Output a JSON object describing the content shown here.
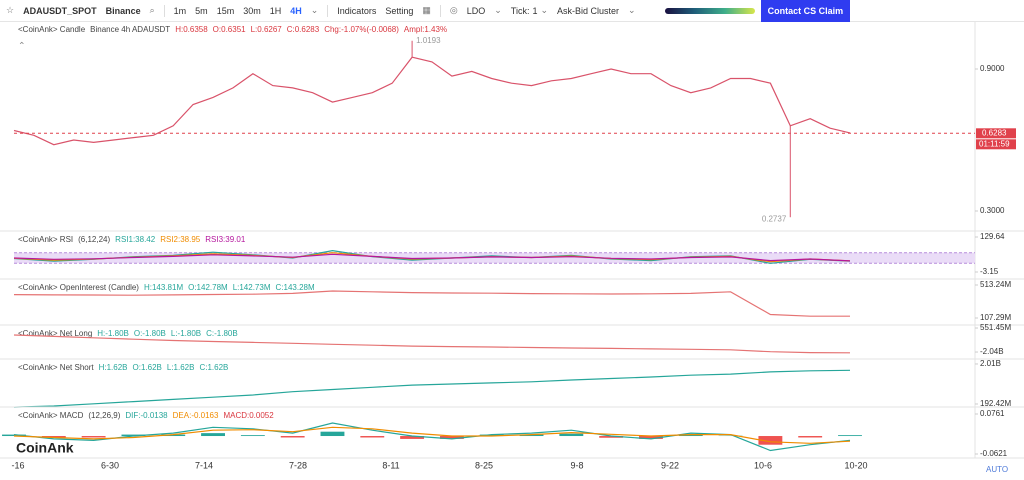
{
  "toolbar": {
    "symbol": "ADAUSDT_SPOT",
    "exchange": "Binance",
    "intervals": [
      "1m",
      "5m",
      "15m",
      "30m",
      "1H",
      "4H"
    ],
    "active_interval": 5,
    "indicators": "Indicators",
    "setting": "Setting",
    "coin": "LDO",
    "tick_label": "Tick:",
    "tick_value": "1",
    "cluster": "Ask-Bid Cluster",
    "contact": "Contact CS Claim"
  },
  "chart_data": [
    {
      "type": "line",
      "header": [
        {
          "text": "<CoinAnk> Candle",
          "color": "#444"
        },
        {
          "text": "Binance 4h ADAUSDT",
          "color": "#444"
        },
        {
          "text": "H:0.6358",
          "color": "#d9363e"
        },
        {
          "text": "O:0.6351",
          "color": "#d9363e"
        },
        {
          "text": "L:0.6267",
          "color": "#d9363e"
        },
        {
          "text": "C:0.6283",
          "color": "#d9363e"
        },
        {
          "text": "Chg:-1.07%(-0.0068)",
          "color": "#d9363e"
        },
        {
          "text": "Ampl:1.43%",
          "color": "#d9363e"
        }
      ],
      "series": [
        {
          "color": "#d9536a",
          "values": [
            0.64,
            0.62,
            0.58,
            0.6,
            0.59,
            0.6,
            0.61,
            0.62,
            0.66,
            0.75,
            0.78,
            0.82,
            0.88,
            0.83,
            0.82,
            0.8,
            0.76,
            0.78,
            0.8,
            0.84,
            0.95,
            0.93,
            0.87,
            0.89,
            0.86,
            0.84,
            0.83,
            0.85,
            0.86,
            0.88,
            0.9,
            0.88,
            0.88,
            0.83,
            0.8,
            0.82,
            0.86,
            0.86,
            0.84,
            0.66,
            0.69,
            0.65,
            0.63
          ]
        }
      ],
      "high": 1.0193,
      "low": 0.2737,
      "current_price": 0.6283,
      "countdown": "01:11:59",
      "ylim": [
        0.2197,
        1.0986
      ],
      "yticks": [
        {
          "value": 0.9,
          "label": "0.9000"
        },
        {
          "value": 0.3,
          "label": "0.3000"
        }
      ]
    },
    {
      "type": "line",
      "header": [
        {
          "text": "<CoinAnk> RSI",
          "color": "#444"
        },
        {
          "text": "(6,12,24)",
          "color": "#444"
        },
        {
          "text": "RSI1:38.42",
          "color": "#26a69a"
        },
        {
          "text": "RSI2:38.95",
          "color": "#f08c00"
        },
        {
          "text": "RSI3:39.01",
          "color": "#b5179e"
        }
      ],
      "band": [
        30,
        70
      ],
      "series": [
        {
          "color": "#26a69a",
          "values": [
            48,
            38,
            45,
            55,
            60,
            72,
            62,
            50,
            78,
            55,
            42,
            50,
            58,
            52,
            60,
            46,
            40,
            55,
            58,
            30,
            45,
            38
          ]
        },
        {
          "color": "#f08c00",
          "values": [
            49,
            42,
            46,
            53,
            58,
            66,
            60,
            52,
            70,
            56,
            46,
            50,
            55,
            52,
            57,
            48,
            44,
            53,
            56,
            36,
            46,
            39
          ]
        },
        {
          "color": "#b5179e",
          "values": [
            50,
            45,
            47,
            52,
            56,
            62,
            58,
            53,
            64,
            56,
            48,
            50,
            54,
            52,
            55,
            49,
            46,
            52,
            54,
            40,
            46,
            39
          ]
        }
      ],
      "ylim": [
        -25.9,
        148.6
      ],
      "yticks": [
        129.64,
        -3.15
      ]
    },
    {
      "type": "line",
      "header": [
        {
          "text": "<CoinAnk> OpenInterest (Candle)",
          "color": "#444"
        },
        {
          "text": "H:143.81M",
          "color": "#26a69a"
        },
        {
          "text": "O:142.78M",
          "color": "#26a69a"
        },
        {
          "text": "L:142.73M",
          "color": "#26a69a"
        },
        {
          "text": "C:143.28M",
          "color": "#26a69a"
        }
      ],
      "series": [
        {
          "color": "#e57373",
          "values": [
            395,
            392,
            390,
            388,
            392,
            396,
            400,
            410,
            440,
            430,
            420,
            415,
            412,
            408,
            405,
            402,
            405,
            410,
            430,
            150,
            130,
            130
          ]
        }
      ],
      "ylim": [
        8.9,
        574.7
      ],
      "yticks": [
        {
          "value": 513.24,
          "label": "513.24M"
        },
        {
          "value": 107.29,
          "label": "107.29M"
        }
      ]
    },
    {
      "type": "line",
      "header": [
        {
          "text": "<CoinAnk> Net Long",
          "color": "#444"
        },
        {
          "text": "H:-1.80B",
          "color": "#26a69a"
        },
        {
          "text": "O:-1.80B",
          "color": "#26a69a"
        },
        {
          "text": "L:-1.80B",
          "color": "#26a69a"
        },
        {
          "text": "C:-1.80B",
          "color": "#26a69a"
        }
      ],
      "series": [
        {
          "color": "#e57373",
          "values": [
            -0.2,
            -0.35,
            -0.5,
            -0.65,
            -0.8,
            -0.9,
            -1.0,
            -1.1,
            -1.2,
            -1.3,
            -1.4,
            -1.45,
            -1.5,
            -1.55,
            -1.6,
            -1.65,
            -1.7,
            -1.75,
            -1.8,
            -2.0,
            -2.1,
            -2.12
          ]
        }
      ],
      "ylim": [
        -2.9,
        0.77
      ],
      "yticks": [
        {
          "value": 0.55145,
          "label": "551.45M"
        },
        {
          "value": -2.04,
          "label": "-2.04B"
        }
      ]
    },
    {
      "type": "line",
      "header": [
        {
          "text": "<CoinAnk> Net Short",
          "color": "#444"
        },
        {
          "text": "H:1.62B",
          "color": "#26a69a"
        },
        {
          "text": "O:1.62B",
          "color": "#26a69a"
        },
        {
          "text": "L:1.62B",
          "color": "#26a69a"
        },
        {
          "text": "C:1.62B",
          "color": "#26a69a"
        }
      ],
      "series": [
        {
          "color": "#26a69a",
          "values": [
            0.05,
            0.1,
            0.2,
            0.3,
            0.4,
            0.5,
            0.6,
            0.75,
            0.85,
            0.95,
            1.05,
            1.1,
            1.15,
            1.2,
            1.28,
            1.35,
            1.42,
            1.5,
            1.55,
            1.65,
            1.7,
            1.72
          ]
        }
      ],
      "ylim": [
        0.01,
        2.19
      ],
      "yticks": [
        {
          "value": 2.01,
          "label": "2.01B"
        },
        {
          "value": 0.19242,
          "label": "192.42M"
        }
      ]
    },
    {
      "type": "line",
      "header": [
        {
          "text": "<CoinAnk> MACD",
          "color": "#444"
        },
        {
          "text": "(12,26,9)",
          "color": "#444"
        },
        {
          "text": "DIF:-0.0138",
          "color": "#26a69a"
        },
        {
          "text": "DEA:-0.0163",
          "color": "#f08c00"
        },
        {
          "text": "MACD:0.0052",
          "color": "#d9363e"
        }
      ],
      "series": [
        {
          "type": "bar",
          "color": "#26a69a",
          "negative_color": "#ef5350",
          "values": [
            0.005,
            -0.005,
            -0.005,
            0.005,
            0.005,
            0.01,
            0.003,
            -0.005,
            0.015,
            -0.005,
            -0.01,
            -0.01,
            0.005,
            0.005,
            0.008,
            -0.006,
            -0.01,
            0.005,
            0.001,
            -0.03,
            -0.005,
            0.003
          ]
        },
        {
          "color": "#26a69a",
          "values": [
            0.005,
            -0.01,
            -0.015,
            0.0,
            0.01,
            0.03,
            0.025,
            0.01,
            0.045,
            0.02,
            0.0,
            -0.01,
            0.005,
            0.01,
            0.02,
            0.0,
            -0.01,
            0.01,
            0.005,
            -0.05,
            -0.03,
            -0.015
          ]
        },
        {
          "color": "#f08c00",
          "values": [
            0.0,
            -0.005,
            -0.01,
            -0.005,
            0.005,
            0.02,
            0.022,
            0.015,
            0.03,
            0.025,
            0.01,
            0.0,
            0.0,
            0.005,
            0.012,
            0.006,
            0.0,
            0.005,
            0.005,
            -0.02,
            -0.025,
            -0.018
          ]
        }
      ],
      "ylim": [
        -0.0759,
        0.0968
      ],
      "yticks": [
        0.0761,
        -0.0621
      ]
    }
  ],
  "x_axis": {
    "labels": [
      "-16",
      "6-30",
      "7-14",
      "7-28",
      "8-11",
      "8-25",
      "9-8",
      "9-22",
      "10-6",
      "10-20"
    ],
    "auto": "AUTO"
  },
  "watermark": "CoinAnk"
}
